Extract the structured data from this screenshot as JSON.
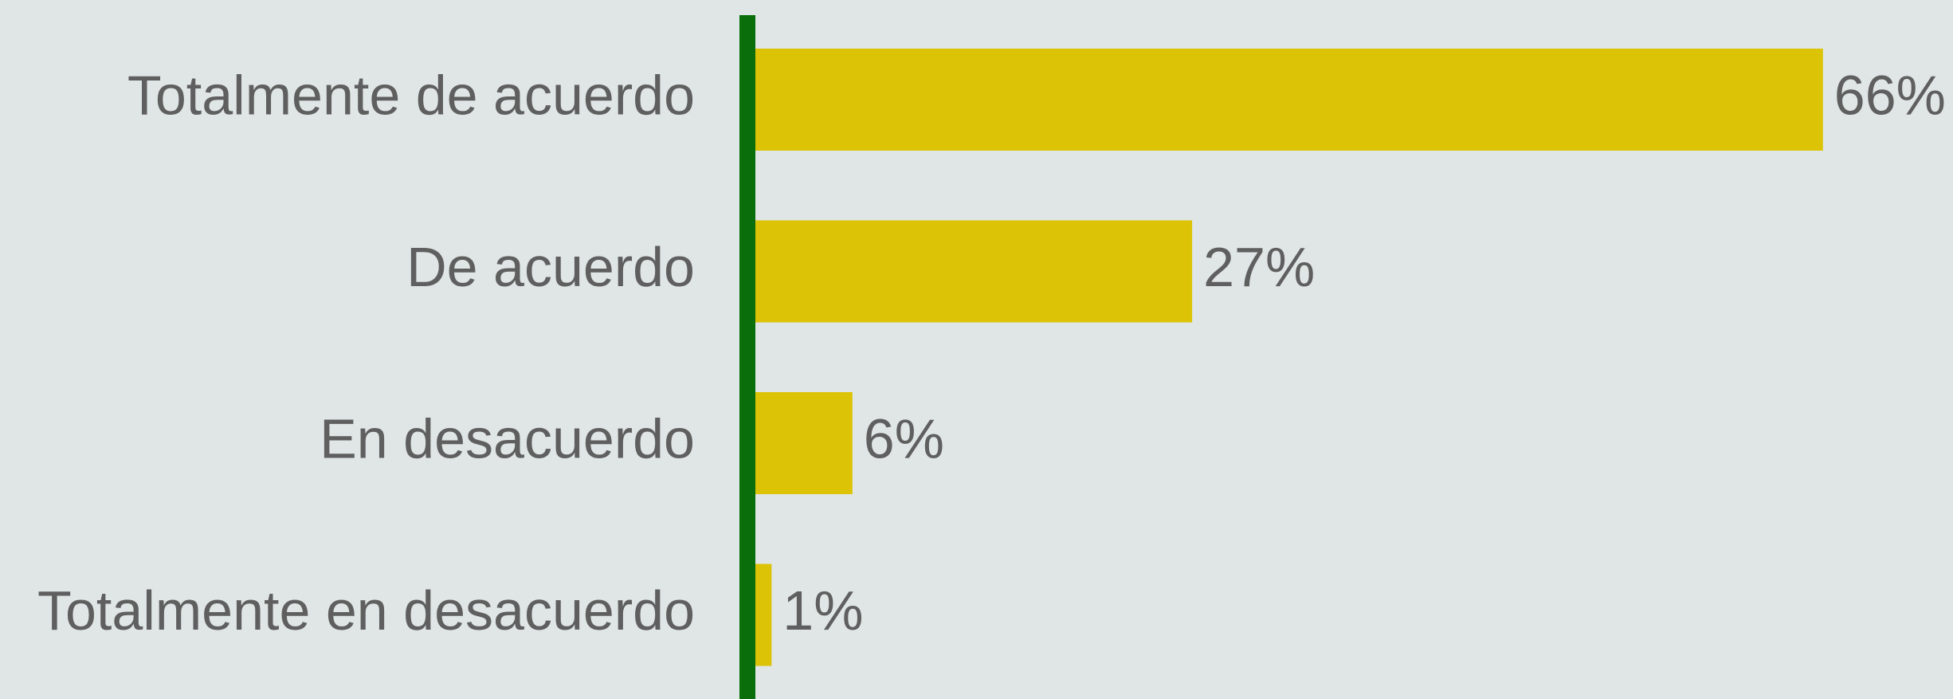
{
  "chart_data": {
    "type": "bar",
    "orientation": "horizontal",
    "categories": [
      "Totalmente de acuerdo",
      "De acuerdo",
      "En desacuerdo",
      "Totalmente en desacuerdo"
    ],
    "values": [
      66,
      27,
      6,
      1
    ],
    "value_labels": [
      "66%",
      "27%",
      "6%",
      "1%"
    ],
    "color": "#dcc306"
  }
}
